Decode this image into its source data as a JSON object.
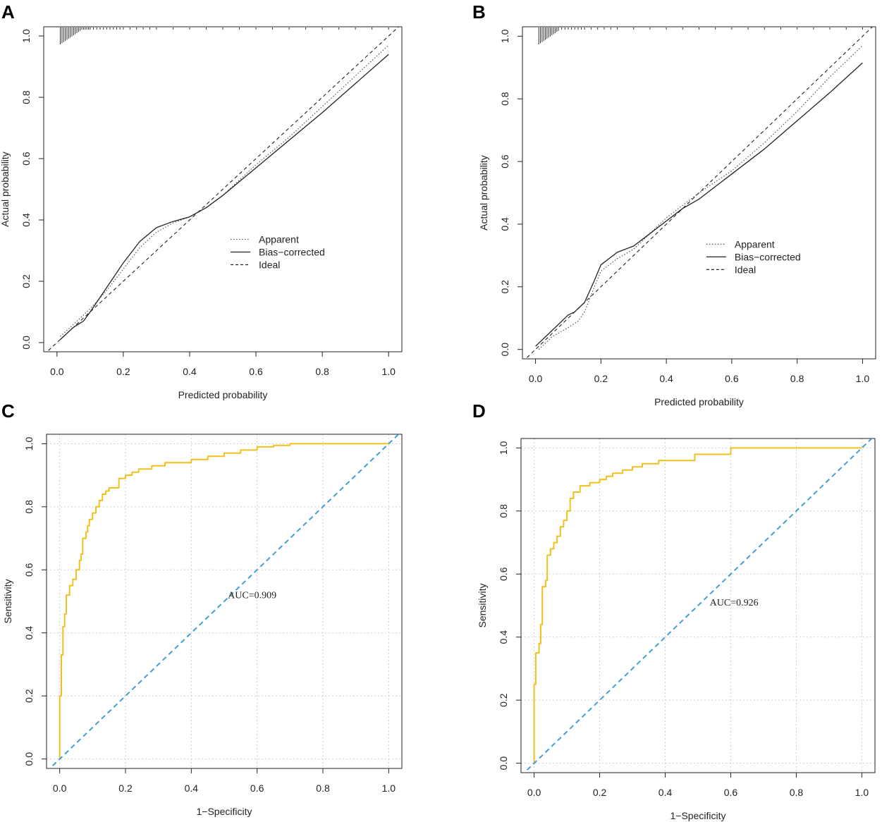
{
  "chart_data": [
    {
      "panel": "A",
      "type": "line",
      "kind": "calibration",
      "xlabel": "Predicted probability",
      "ylabel": "Actual  probability",
      "xlim": [
        -0.04,
        1.04
      ],
      "ylim": [
        -0.03,
        1.03
      ],
      "xticks": [
        "0.0",
        "0.2",
        "0.4",
        "0.6",
        "0.8",
        "1.0"
      ],
      "yticks": [
        "0.0",
        "0.2",
        "0.4",
        "0.6",
        "0.8",
        "1.0"
      ],
      "legend": [
        "Apparent",
        "Bias−corrected",
        "Ideal"
      ],
      "legend_position": "bottom-right",
      "series": [
        {
          "name": "Apparent",
          "style": "dotted",
          "x": [
            0.01,
            0.05,
            0.1,
            0.15,
            0.2,
            0.25,
            0.3,
            0.35,
            0.4,
            0.45,
            0.5,
            0.6,
            0.7,
            0.8,
            0.9,
            1.0
          ],
          "y": [
            0.02,
            0.06,
            0.11,
            0.17,
            0.24,
            0.31,
            0.36,
            0.39,
            0.41,
            0.44,
            0.48,
            0.58,
            0.67,
            0.77,
            0.87,
            0.97
          ]
        },
        {
          "name": "Bias−corrected",
          "style": "solid",
          "x": [
            0.01,
            0.05,
            0.08,
            0.1,
            0.15,
            0.2,
            0.25,
            0.3,
            0.35,
            0.4,
            0.45,
            0.5,
            0.6,
            0.7,
            0.8,
            0.9,
            1.0
          ],
          "y": [
            0.01,
            0.05,
            0.07,
            0.1,
            0.18,
            0.26,
            0.33,
            0.375,
            0.395,
            0.41,
            0.44,
            0.48,
            0.57,
            0.66,
            0.75,
            0.845,
            0.94
          ]
        },
        {
          "name": "Ideal",
          "style": "dashed",
          "x": [
            -0.04,
            1.04
          ],
          "y": [
            -0.04,
            1.04
          ]
        }
      ],
      "rug_x": [
        0.01,
        0.015,
        0.02,
        0.025,
        0.03,
        0.035,
        0.04,
        0.045,
        0.05,
        0.055,
        0.06,
        0.065,
        0.07,
        0.075,
        0.08,
        0.085,
        0.09,
        0.095,
        0.1,
        0.11,
        0.12,
        0.13,
        0.14,
        0.15,
        0.16,
        0.17,
        0.18,
        0.19,
        0.2,
        0.22,
        0.24,
        0.26,
        0.28,
        0.3,
        0.35,
        0.4,
        0.45,
        0.5,
        0.55,
        0.6,
        0.65,
        0.7,
        0.75,
        0.8,
        0.85,
        0.9,
        0.95,
        1.0
      ]
    },
    {
      "panel": "B",
      "type": "line",
      "kind": "calibration",
      "xlabel": "Predicted probability",
      "ylabel": "Actual  probability",
      "xlim": [
        -0.04,
        1.04
      ],
      "ylim": [
        -0.03,
        1.03
      ],
      "xticks": [
        "0.0",
        "0.2",
        "0.4",
        "0.6",
        "0.8",
        "1.0"
      ],
      "yticks": [
        "0.0",
        "0.2",
        "0.4",
        "0.6",
        "0.8",
        "1.0"
      ],
      "legend": [
        "Apparent",
        "Bias−corrected",
        "Ideal"
      ],
      "legend_position": "bottom-right",
      "series": [
        {
          "name": "Apparent",
          "style": "dotted",
          "x": [
            0.01,
            0.05,
            0.1,
            0.13,
            0.15,
            0.18,
            0.2,
            0.25,
            0.3,
            0.35,
            0.4,
            0.5,
            0.6,
            0.7,
            0.8,
            0.9,
            1.0
          ],
          "y": [
            0.0,
            0.04,
            0.07,
            0.09,
            0.12,
            0.2,
            0.25,
            0.29,
            0.32,
            0.37,
            0.42,
            0.5,
            0.57,
            0.66,
            0.76,
            0.87,
            0.97
          ]
        },
        {
          "name": "Bias−corrected",
          "style": "solid",
          "x": [
            0.0,
            0.05,
            0.1,
            0.12,
            0.15,
            0.18,
            0.2,
            0.25,
            0.3,
            0.35,
            0.4,
            0.45,
            0.5,
            0.6,
            0.7,
            0.8,
            0.9,
            1.0
          ],
          "y": [
            0.01,
            0.06,
            0.11,
            0.12,
            0.15,
            0.22,
            0.27,
            0.31,
            0.33,
            0.37,
            0.41,
            0.45,
            0.48,
            0.56,
            0.64,
            0.73,
            0.82,
            0.915
          ]
        },
        {
          "name": "Ideal",
          "style": "dashed",
          "x": [
            -0.04,
            1.04
          ],
          "y": [
            -0.04,
            1.04
          ]
        }
      ],
      "rug_x": [
        0.01,
        0.015,
        0.02,
        0.025,
        0.03,
        0.035,
        0.04,
        0.045,
        0.05,
        0.055,
        0.06,
        0.065,
        0.07,
        0.08,
        0.09,
        0.1,
        0.11,
        0.12,
        0.13,
        0.14,
        0.15,
        0.17,
        0.19,
        0.21,
        0.23,
        0.25,
        0.3,
        0.35,
        0.4,
        0.45,
        0.5,
        0.55,
        0.6,
        0.65,
        0.7,
        0.75,
        0.8,
        0.85,
        0.9,
        0.95,
        1.0
      ]
    },
    {
      "panel": "C",
      "type": "line",
      "kind": "roc",
      "xlabel": "1−Specificity",
      "ylabel": "Sensitivity",
      "xlim": [
        -0.04,
        1.04
      ],
      "ylim": [
        -0.03,
        1.03
      ],
      "xticks": [
        "0.0",
        "0.2",
        "0.4",
        "0.6",
        "0.8",
        "1.0"
      ],
      "yticks": [
        "0.0",
        "0.2",
        "0.4",
        "0.6",
        "0.8",
        "1.0"
      ],
      "grid": true,
      "annotation": "AUC=0.909",
      "annotation_at": [
        0.585,
        0.51
      ],
      "series": [
        {
          "name": "ROC",
          "color": "#f2c01e",
          "x": [
            0,
            0,
            0.005,
            0.005,
            0.01,
            0.01,
            0.015,
            0.015,
            0.02,
            0.02,
            0.03,
            0.03,
            0.04,
            0.04,
            0.05,
            0.05,
            0.06,
            0.06,
            0.065,
            0.065,
            0.07,
            0.07,
            0.08,
            0.08,
            0.085,
            0.085,
            0.09,
            0.09,
            0.1,
            0.1,
            0.11,
            0.11,
            0.12,
            0.12,
            0.13,
            0.13,
            0.14,
            0.14,
            0.15,
            0.15,
            0.16,
            0.16,
            0.18,
            0.18,
            0.2,
            0.2,
            0.22,
            0.22,
            0.24,
            0.24,
            0.28,
            0.28,
            0.32,
            0.32,
            0.36,
            0.36,
            0.4,
            0.4,
            0.45,
            0.45,
            0.5,
            0.5,
            0.55,
            0.55,
            0.6,
            0.6,
            0.65,
            0.65,
            0.7,
            0.7,
            0.75,
            0.75,
            1.0
          ],
          "y": [
            0,
            0.2,
            0.2,
            0.33,
            0.33,
            0.42,
            0.42,
            0.46,
            0.46,
            0.52,
            0.52,
            0.55,
            0.55,
            0.57,
            0.57,
            0.6,
            0.6,
            0.63,
            0.63,
            0.65,
            0.65,
            0.7,
            0.7,
            0.72,
            0.72,
            0.74,
            0.74,
            0.76,
            0.76,
            0.78,
            0.78,
            0.8,
            0.8,
            0.82,
            0.82,
            0.84,
            0.84,
            0.85,
            0.85,
            0.86,
            0.86,
            0.86,
            0.86,
            0.89,
            0.89,
            0.9,
            0.9,
            0.91,
            0.91,
            0.92,
            0.92,
            0.93,
            0.93,
            0.94,
            0.94,
            0.94,
            0.94,
            0.95,
            0.95,
            0.96,
            0.96,
            0.97,
            0.97,
            0.98,
            0.98,
            0.99,
            0.99,
            0.995,
            0.995,
            1.0,
            1.0,
            1.0,
            1.0
          ]
        },
        {
          "name": "Chance",
          "color": "#3fa0d8",
          "style": "dashed",
          "x": [
            -0.04,
            1.04
          ],
          "y": [
            -0.04,
            1.04
          ]
        }
      ]
    },
    {
      "panel": "D",
      "type": "line",
      "kind": "roc",
      "xlabel": "1−Specificity",
      "ylabel": "Sensitivity",
      "xlim": [
        -0.04,
        1.04
      ],
      "ylim": [
        -0.03,
        1.03
      ],
      "xticks": [
        "0.0",
        "0.2",
        "0.4",
        "0.6",
        "0.8",
        "1.0"
      ],
      "yticks": [
        "0.0",
        "0.2",
        "0.4",
        "0.6",
        "0.8",
        "1.0"
      ],
      "grid": true,
      "annotation": "AUC=0.926",
      "annotation_at": [
        0.61,
        0.5
      ],
      "series": [
        {
          "name": "ROC",
          "color": "#f2c01e",
          "x": [
            0,
            0,
            0.005,
            0.005,
            0.015,
            0.015,
            0.02,
            0.02,
            0.025,
            0.025,
            0.035,
            0.035,
            0.04,
            0.04,
            0.05,
            0.05,
            0.06,
            0.06,
            0.07,
            0.07,
            0.08,
            0.08,
            0.09,
            0.09,
            0.1,
            0.1,
            0.11,
            0.11,
            0.12,
            0.12,
            0.14,
            0.14,
            0.17,
            0.17,
            0.2,
            0.2,
            0.22,
            0.22,
            0.24,
            0.24,
            0.27,
            0.27,
            0.3,
            0.3,
            0.33,
            0.33,
            0.38,
            0.38,
            0.42,
            0.42,
            0.49,
            0.49,
            0.6,
            0.6,
            1.0
          ],
          "y": [
            0,
            0.25,
            0.25,
            0.35,
            0.35,
            0.38,
            0.38,
            0.44,
            0.44,
            0.56,
            0.56,
            0.58,
            0.58,
            0.66,
            0.66,
            0.68,
            0.68,
            0.7,
            0.7,
            0.72,
            0.72,
            0.75,
            0.75,
            0.77,
            0.77,
            0.8,
            0.8,
            0.84,
            0.84,
            0.86,
            0.86,
            0.88,
            0.88,
            0.89,
            0.89,
            0.9,
            0.9,
            0.91,
            0.91,
            0.92,
            0.92,
            0.93,
            0.93,
            0.94,
            0.94,
            0.95,
            0.95,
            0.96,
            0.96,
            0.96,
            0.96,
            0.98,
            0.98,
            1.0,
            1.0
          ]
        },
        {
          "name": "Chance",
          "color": "#3fa0d8",
          "style": "dashed",
          "x": [
            -0.04,
            1.04
          ],
          "y": [
            -0.04,
            1.04
          ]
        }
      ]
    }
  ]
}
